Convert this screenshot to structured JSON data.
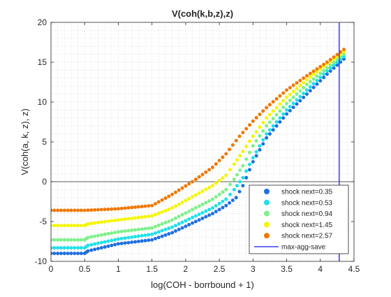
{
  "chart_data": {
    "type": "scatter",
    "title": "V(coh(k,b,z),z)",
    "xlabel": "log(COH - borrbound + 1)",
    "ylabel": "V(coh(a, k, z), z)",
    "xlim": [
      0,
      4.5
    ],
    "ylim": [
      -10,
      20
    ],
    "x_ticks": [
      "0",
      "0.5",
      "1",
      "1.5",
      "2",
      "2.5",
      "3",
      "3.5",
      "4",
      "4.5"
    ],
    "y_ticks": [
      "-10",
      "-5",
      "0",
      "5",
      "10",
      "15",
      "20"
    ],
    "grid": "minor dotted",
    "zero_line": true,
    "legend_position": "bottom-right",
    "series": [
      {
        "name": "shock next=0.35",
        "color": "#1f6fe0",
        "points": [
          [
            0.0,
            -9.0
          ],
          [
            0.5,
            -9.0
          ],
          [
            0.55,
            -8.7
          ],
          [
            1.0,
            -7.8
          ],
          [
            1.5,
            -7.3
          ],
          [
            1.8,
            -6.4
          ],
          [
            2.1,
            -5.2
          ],
          [
            2.4,
            -4.0
          ],
          [
            2.6,
            -3.0
          ],
          [
            2.75,
            -2.0
          ],
          [
            2.85,
            -0.5
          ],
          [
            3.0,
            2.5
          ],
          [
            3.2,
            5.5
          ],
          [
            3.5,
            8.5
          ],
          [
            3.8,
            11.0
          ],
          [
            4.1,
            13.5
          ],
          [
            4.35,
            15.4
          ]
        ]
      },
      {
        "name": "shock next=0.53",
        "color": "#1fe0e8",
        "points": [
          [
            0.0,
            -8.3
          ],
          [
            0.5,
            -8.3
          ],
          [
            0.55,
            -8.0
          ],
          [
            1.0,
            -7.2
          ],
          [
            1.5,
            -6.6
          ],
          [
            1.8,
            -5.7
          ],
          [
            2.1,
            -4.5
          ],
          [
            2.4,
            -3.3
          ],
          [
            2.6,
            -2.2
          ],
          [
            2.72,
            -1.0
          ],
          [
            2.85,
            0.5
          ],
          [
            3.0,
            3.0
          ],
          [
            3.2,
            6.0
          ],
          [
            3.5,
            9.0
          ],
          [
            3.8,
            11.5
          ],
          [
            4.1,
            13.9
          ],
          [
            4.35,
            15.7
          ]
        ]
      },
      {
        "name": "shock next=0.94",
        "color": "#7df08a",
        "points": [
          [
            0.0,
            -7.3
          ],
          [
            0.5,
            -7.3
          ],
          [
            0.55,
            -7.0
          ],
          [
            1.0,
            -6.3
          ],
          [
            1.5,
            -5.8
          ],
          [
            1.8,
            -4.8
          ],
          [
            2.1,
            -3.5
          ],
          [
            2.4,
            -2.2
          ],
          [
            2.6,
            -1.0
          ],
          [
            2.72,
            0.3
          ],
          [
            2.85,
            2.0
          ],
          [
            3.0,
            4.5
          ],
          [
            3.2,
            7.0
          ],
          [
            3.5,
            9.8
          ],
          [
            3.8,
            12.2
          ],
          [
            4.1,
            14.3
          ],
          [
            4.35,
            16.0
          ]
        ]
      },
      {
        "name": "shock next=1.45",
        "color": "#f5f500",
        "points": [
          [
            0.0,
            -5.5
          ],
          [
            0.5,
            -5.5
          ],
          [
            0.55,
            -5.3
          ],
          [
            1.0,
            -4.8
          ],
          [
            1.5,
            -4.3
          ],
          [
            1.8,
            -3.3
          ],
          [
            2.1,
            -1.9
          ],
          [
            2.4,
            -0.5
          ],
          [
            2.6,
            0.8
          ],
          [
            2.72,
            2.2
          ],
          [
            2.85,
            3.8
          ],
          [
            3.0,
            5.7
          ],
          [
            3.2,
            8.0
          ],
          [
            3.5,
            10.6
          ],
          [
            3.8,
            12.8
          ],
          [
            4.1,
            14.8
          ],
          [
            4.35,
            16.3
          ]
        ]
      },
      {
        "name": "shock next=2.57",
        "color": "#f07800",
        "points": [
          [
            0.0,
            -3.6
          ],
          [
            0.5,
            -3.6
          ],
          [
            1.0,
            -3.4
          ],
          [
            1.5,
            -3.0
          ],
          [
            1.8,
            -1.6
          ],
          [
            2.1,
            0.0
          ],
          [
            2.4,
            1.8
          ],
          [
            2.6,
            3.5
          ],
          [
            2.8,
            5.7
          ],
          [
            3.0,
            7.6
          ],
          [
            3.2,
            9.3
          ],
          [
            3.5,
            11.5
          ],
          [
            3.8,
            13.3
          ],
          [
            4.1,
            15.0
          ],
          [
            4.35,
            16.6
          ]
        ]
      }
    ],
    "vline": {
      "name": "max-agg-save",
      "x": 4.28,
      "color": "#3a3af0"
    }
  }
}
